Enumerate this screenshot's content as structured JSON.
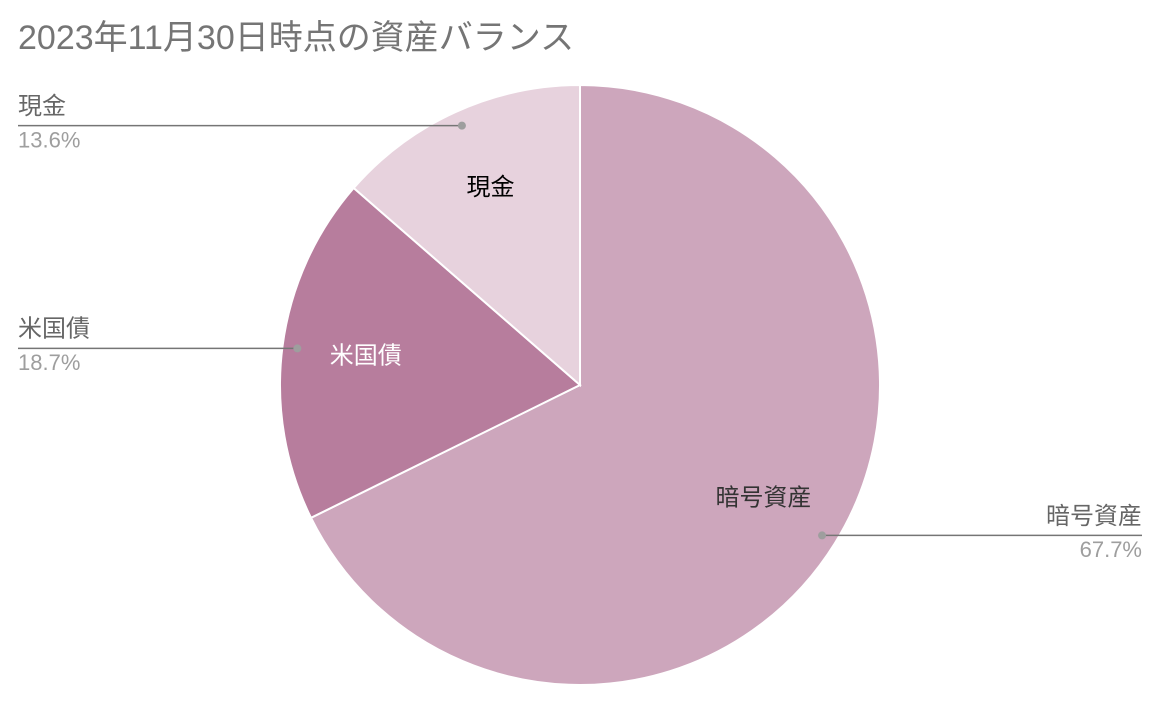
{
  "chart_data": {
    "type": "pie",
    "title": "2023年11月30日時点の資産バランス",
    "categories": [
      "暗号資産",
      "米国債",
      "現金"
    ],
    "values": [
      67.7,
      18.7,
      13.6
    ],
    "value_labels": [
      "67.7%",
      "18.7%",
      "13.6%"
    ],
    "colors": [
      "#cda6bc",
      "#b77d9d",
      "#e7d2dd"
    ]
  }
}
